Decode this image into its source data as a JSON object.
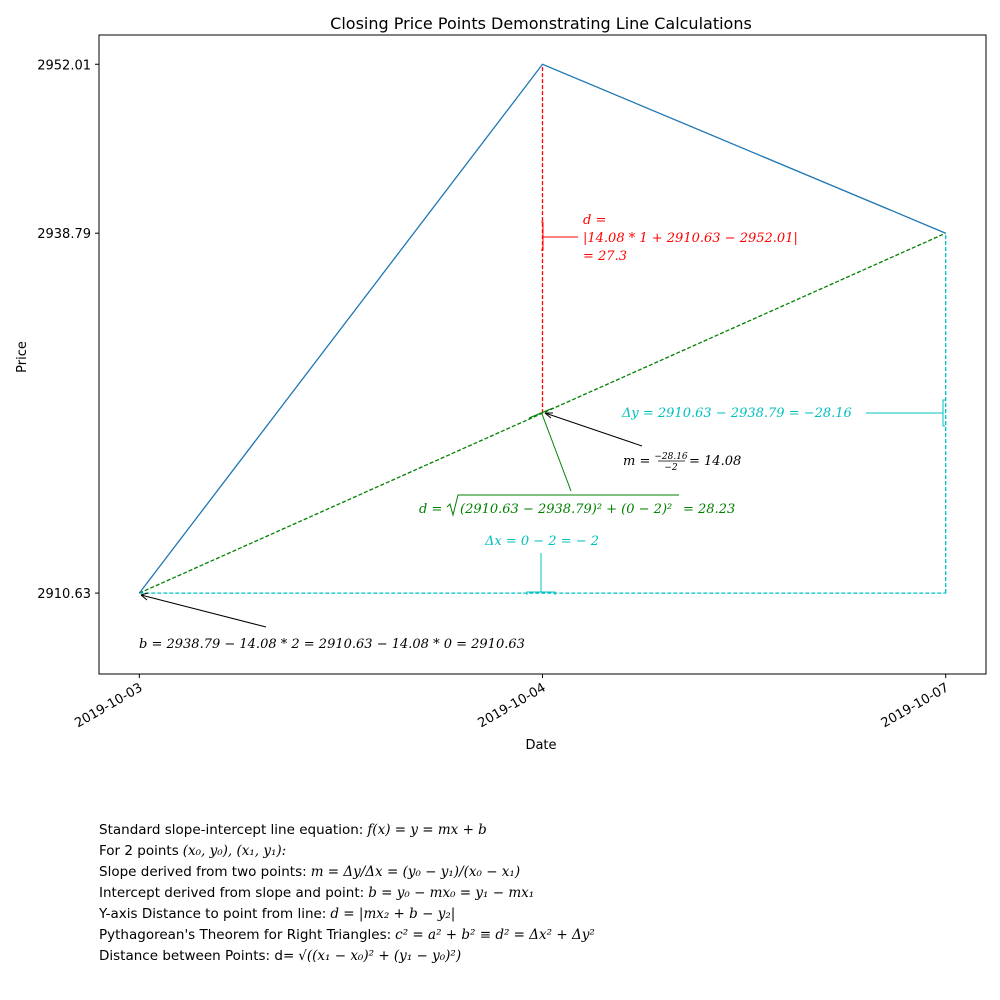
{
  "chart_data": {
    "type": "line",
    "title": "Closing Price Points Demonstrating Line Calculations",
    "xlabel": "Date",
    "ylabel": "Price",
    "x": [
      "2019-10-03",
      "2019-10-04",
      "2019-10-07"
    ],
    "x_index": [
      0,
      1,
      2
    ],
    "ytick_labels": [
      "2910.63",
      "2938.79",
      "2952.01"
    ],
    "ylim": [
      2904.3,
      2954.3
    ],
    "xlim": [
      -0.1,
      2.1
    ],
    "series": [
      {
        "values": [
          2910.63,
          2952.01,
          2938.79
        ],
        "color": "#1f77b4",
        "style": "solid"
      }
    ],
    "guides": {
      "line_fit": {
        "color": "#008000",
        "style": "dashed",
        "from": [
          0,
          2910.63
        ],
        "to": [
          2,
          2938.79
        ]
      },
      "residual": {
        "color": "#ff0000",
        "style": "dashed",
        "x": 1,
        "from": 2924.71,
        "to": 2952.01
      },
      "delta_x": {
        "color": "#00bfbf",
        "style": "dashed",
        "y": 2910.63,
        "from": 0,
        "to": 2
      },
      "delta_y": {
        "color": "#00bfbf",
        "style": "dashed",
        "x": 2,
        "from": 2910.63,
        "to": 2938.79
      }
    },
    "annotations": {
      "residual": {
        "color": "#ff0000",
        "lines": [
          "d =",
          "|14.08 * 1 + 2910.63 − 2952.01|",
          "= 27.3"
        ]
      },
      "delta_y": {
        "color": "#00bfbf",
        "text": "Δy = 2910.63 − 2938.79 = −28.16"
      },
      "slope": {
        "color": "#000000",
        "prefix": "m =",
        "numerator": "−28.16",
        "denominator": "−2",
        "suffix": "= 14.08"
      },
      "distance": {
        "color": "#008000",
        "prefix": "d =",
        "radicand": "(2910.63 − 2938.79)² + (0 − 2)²",
        "suffix": "= 28.23"
      },
      "delta_x": {
        "color": "#00bfbf",
        "text": "Δx = 0 − 2 = − 2"
      },
      "intercept": {
        "color": "#000000",
        "text": "b = 2938.79 − 14.08 * 2 = 2910.63 − 14.08 * 0 = 2910.63"
      }
    }
  },
  "notes": [
    {
      "label": "Standard slope-intercept line equation:",
      "math": "f(x) = y = mx + b"
    },
    {
      "label": "For 2 points",
      "math": "(x₀, y₀), (x₁, y₁):"
    },
    {
      "label": "Slope derived from two points:",
      "math": "m = Δy/Δx = (y₀ − y₁)/(x₀ − x₁)"
    },
    {
      "label": "Intercept derived from slope and point:",
      "math": "b = y₀ − mx₀ = y₁ − mx₁"
    },
    {
      "label": "Y-axis Distance to point from line:",
      "math": "d = |mx₂ + b − y₂|"
    },
    {
      "label": "Pythagorean's Theorem for Right Triangles:",
      "math": "c² = a² + b² ≡  d² = Δx² + Δy²"
    },
    {
      "label": "Distance between Points: d=",
      "math": "√((x₁ − x₀)² + (y₁ − y₀)²)"
    }
  ]
}
